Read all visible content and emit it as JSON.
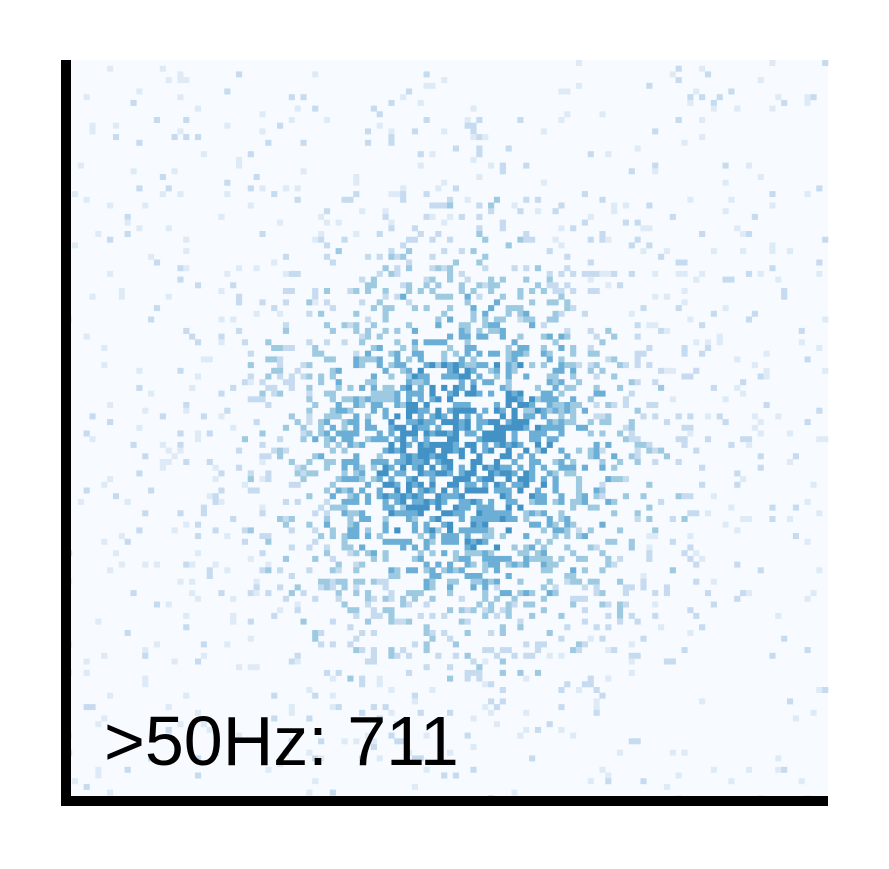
{
  "chart_data": {
    "type": "heatmap",
    "title": "",
    "xlabel": "",
    "ylabel": "",
    "grid": false,
    "legend": "none",
    "annotation": ">50Hz: 711",
    "grid_cells": [
      130,
      130
    ],
    "density_center": [
      0.52,
      0.53
    ],
    "density_spread": [
      0.16,
      0.17
    ],
    "colors": {
      "background": "#f7fbff",
      "low": "#deebf7",
      "mid_low": "#c6dbef",
      "mid": "#9ecae1",
      "mid_high": "#6baed6",
      "high": "#4292c6",
      "axis": "#000000"
    }
  }
}
